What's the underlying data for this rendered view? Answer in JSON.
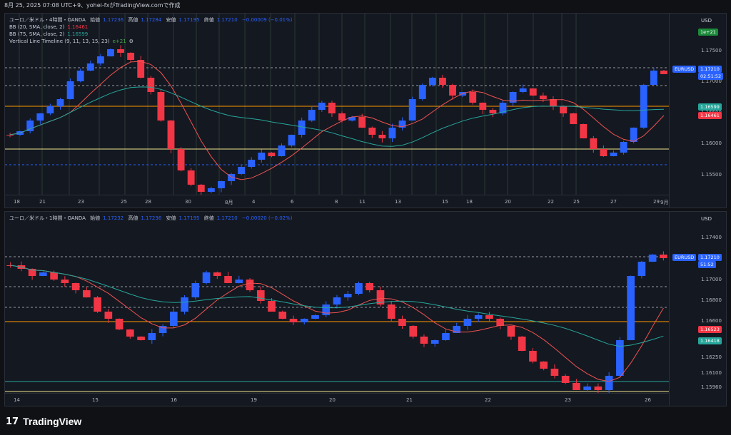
{
  "header": {
    "text": "8月 25, 2025 07:08 UTC+9、yohei-fxがTradingView.comで作成"
  },
  "colors": {
    "up": "#2962ff",
    "down": "#f23645",
    "bb_mid": "#ef5350",
    "bb75": "#26a69a",
    "line_green": "#4caf50",
    "level_orange": "#ff9800",
    "level_yellow": "#f0e68c"
  },
  "pane1": {
    "title": "ユーロ／米ドル・4時間・OANDA",
    "open_label": "始値",
    "open": "1.17236",
    "high_label": "高値",
    "high": "1.17284",
    "low_label": "安値",
    "low": "1.17195",
    "close_label": "終値",
    "close": "1.17210",
    "change": "−0.00009 (−0.01%)",
    "ind1_label": "BB (20, SMA, close, 2)",
    "ind1_value": "1.16461",
    "ind2_label": "BB (75, SMA, close, 2)",
    "ind2_value": "1.16599",
    "ind3_label": "Vertical Line Timeline (9, 11, 13, 15, 23)",
    "ind3_value": "e+21",
    "currency": "USD",
    "count_badge": "1e+21",
    "y_ticks": [
      "1.17500",
      "1.17000",
      "1.16500",
      "1.16000",
      "1.15500"
    ],
    "symbol_badge": "EURUSD",
    "price_badge": "1.17210",
    "countdown": "02:51:52",
    "bb75_badge": "1.16599",
    "bb20_badge": "1.16461",
    "x_ticks": [
      "18",
      "21",
      "23",
      "25",
      "28",
      "30",
      "8月",
      "4",
      "6",
      "8",
      "11",
      "13",
      "15",
      "18",
      "20",
      "22",
      "25",
      "27",
      "29",
      "9月"
    ]
  },
  "pane2": {
    "title": "ユーロ／米ドル・1時間・OANDA",
    "open_label": "始値",
    "open": "1.17232",
    "high_label": "高値",
    "high": "1.17236",
    "low_label": "安値",
    "low": "1.17195",
    "close_label": "終値",
    "close": "1.17210",
    "change": "−0.00020 (−0.02%)",
    "currency": "USD",
    "y_ticks": [
      "1.17400",
      "1.17000",
      "1.16800",
      "1.16600",
      "1.16250",
      "1.16100",
      "1.15960"
    ],
    "symbol_badge": "EURUSD",
    "price_badge": "1.17210",
    "countdown": "51:52",
    "bb20_badge": "1.16523",
    "bb75_badge": "1.16418",
    "x_ticks": [
      "14",
      "15",
      "16",
      "19",
      "20",
      "21",
      "22",
      "23",
      "26"
    ]
  },
  "footer": {
    "brand": "TradingView",
    "mark": "17"
  }
}
